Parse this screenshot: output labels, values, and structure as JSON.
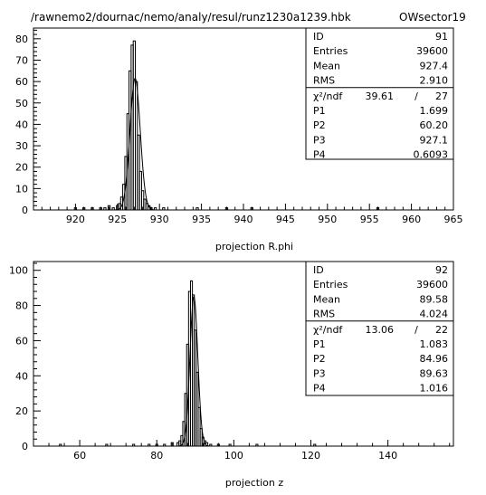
{
  "header": {
    "path": "/rawnemo2/dournac/nemo/analy/resul/runz1230a1239.hbk",
    "sector": "OWsector19"
  },
  "chart_data": [
    {
      "type": "histogram",
      "xlabel": "projection R.phi",
      "xlim": [
        915,
        965
      ],
      "ylim": [
        0,
        85
      ],
      "xticks": [
        920,
        925,
        930,
        935,
        940,
        945,
        950,
        955,
        960,
        965
      ],
      "yticks": [
        0,
        10,
        20,
        30,
        40,
        50,
        60,
        70,
        80
      ],
      "bin_width": 0.25,
      "bins": [
        {
          "x": 920.0,
          "y": 1
        },
        {
          "x": 921.0,
          "y": 1
        },
        {
          "x": 922.0,
          "y": 1
        },
        {
          "x": 923.0,
          "y": 1
        },
        {
          "x": 923.5,
          "y": 1
        },
        {
          "x": 924.0,
          "y": 2
        },
        {
          "x": 924.5,
          "y": 1
        },
        {
          "x": 925.0,
          "y": 2
        },
        {
          "x": 925.25,
          "y": 3
        },
        {
          "x": 925.5,
          "y": 6
        },
        {
          "x": 925.75,
          "y": 12
        },
        {
          "x": 926.0,
          "y": 25
        },
        {
          "x": 926.25,
          "y": 45
        },
        {
          "x": 926.5,
          "y": 65
        },
        {
          "x": 926.75,
          "y": 77
        },
        {
          "x": 927.0,
          "y": 79
        },
        {
          "x": 927.25,
          "y": 60
        },
        {
          "x": 927.5,
          "y": 35
        },
        {
          "x": 927.75,
          "y": 18
        },
        {
          "x": 928.0,
          "y": 9
        },
        {
          "x": 928.25,
          "y": 5
        },
        {
          "x": 928.5,
          "y": 3
        },
        {
          "x": 928.75,
          "y": 2
        },
        {
          "x": 929.0,
          "y": 1
        },
        {
          "x": 929.5,
          "y": 1
        },
        {
          "x": 930.5,
          "y": 1
        },
        {
          "x": 934.5,
          "y": 1
        },
        {
          "x": 938.0,
          "y": 1
        },
        {
          "x": 941.0,
          "y": 1
        },
        {
          "x": 956.0,
          "y": 1
        }
      ],
      "fit": {
        "amplitude": 61.5,
        "mean": 927.1,
        "sigma": 0.6093
      },
      "stats": {
        "id": {
          "label": "ID",
          "value": "91"
        },
        "entries": {
          "label": "Entries",
          "value": "39600"
        },
        "mean": {
          "label": "Mean",
          "value": "927.4"
        },
        "rms": {
          "label": "RMS",
          "value": "2.910"
        },
        "chi2": {
          "label": "χ²/ndf",
          "value": "39.61",
          "sep": "/",
          "ndf": "27"
        },
        "params": [
          {
            "label": "P1",
            "value": "1.699"
          },
          {
            "label": "P2",
            "value": "60.20"
          },
          {
            "label": "P3",
            "value": "927.1"
          },
          {
            "label": "P4",
            "value": "0.6093"
          }
        ]
      }
    },
    {
      "type": "histogram",
      "xlabel": "projection z",
      "xlim": [
        48,
        157
      ],
      "ylim": [
        0,
        105
      ],
      "xticks": [
        60,
        80,
        100,
        120,
        140
      ],
      "yticks": [
        0,
        20,
        40,
        60,
        80,
        100
      ],
      "bin_width": 0.5,
      "bins": [
        {
          "x": 55.0,
          "y": 1
        },
        {
          "x": 67.0,
          "y": 1
        },
        {
          "x": 74.0,
          "y": 1
        },
        {
          "x": 78.0,
          "y": 1
        },
        {
          "x": 80.0,
          "y": 1
        },
        {
          "x": 82.0,
          "y": 1
        },
        {
          "x": 84.0,
          "y": 2
        },
        {
          "x": 85.5,
          "y": 2
        },
        {
          "x": 86.0,
          "y": 3
        },
        {
          "x": 86.5,
          "y": 6
        },
        {
          "x": 87.0,
          "y": 14
        },
        {
          "x": 87.5,
          "y": 30
        },
        {
          "x": 88.0,
          "y": 58
        },
        {
          "x": 88.5,
          "y": 88
        },
        {
          "x": 89.0,
          "y": 94
        },
        {
          "x": 89.5,
          "y": 86
        },
        {
          "x": 90.0,
          "y": 66
        },
        {
          "x": 90.5,
          "y": 42
        },
        {
          "x": 91.0,
          "y": 22
        },
        {
          "x": 91.5,
          "y": 10
        },
        {
          "x": 92.0,
          "y": 5
        },
        {
          "x": 92.5,
          "y": 3
        },
        {
          "x": 93.0,
          "y": 2
        },
        {
          "x": 94.0,
          "y": 1
        },
        {
          "x": 96.0,
          "y": 1
        },
        {
          "x": 99.0,
          "y": 1
        },
        {
          "x": 106.0,
          "y": 1
        },
        {
          "x": 121.0,
          "y": 1
        }
      ],
      "fit": {
        "amplitude": 85.0,
        "mean": 89.63,
        "sigma": 1.016
      },
      "stats": {
        "id": {
          "label": "ID",
          "value": "92"
        },
        "entries": {
          "label": "Entries",
          "value": "39600"
        },
        "mean": {
          "label": "Mean",
          "value": "89.58"
        },
        "rms": {
          "label": "RMS",
          "value": "4.024"
        },
        "chi2": {
          "label": "χ²/ndf",
          "value": "13.06",
          "sep": "/",
          "ndf": "22"
        },
        "params": [
          {
            "label": "P1",
            "value": "1.083"
          },
          {
            "label": "P2",
            "value": "84.96"
          },
          {
            "label": "P3",
            "value": "89.63"
          },
          {
            "label": "P4",
            "value": "1.016"
          }
        ]
      }
    }
  ]
}
